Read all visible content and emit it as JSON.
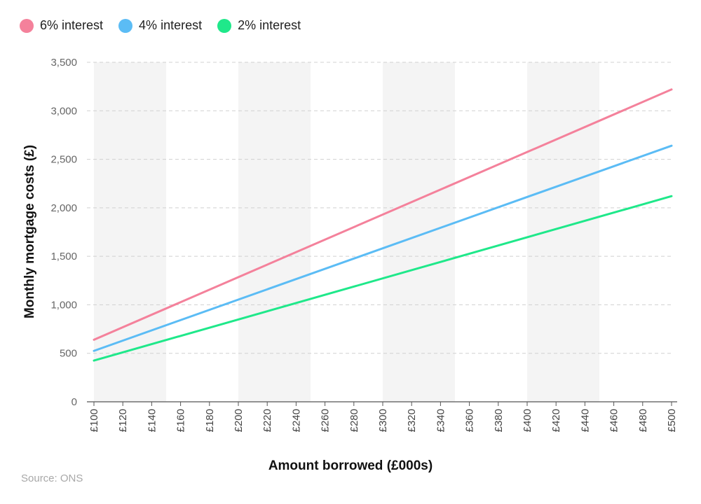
{
  "chart_data": {
    "type": "line",
    "xlabel": "Amount borrowed (£000s)",
    "ylabel": "Monthly mortgage costs (£)",
    "x": [
      100,
      500
    ],
    "x_tick_labels": [
      "£100",
      "£120",
      "£140",
      "£160",
      "£180",
      "£200",
      "£220",
      "£240",
      "£260",
      "£280",
      "£300",
      "£320",
      "£340",
      "£360",
      "£380",
      "£400",
      "£420",
      "£440",
      "£460",
      "£480",
      "£500"
    ],
    "y_tick_labels": [
      "0",
      "500",
      "1,000",
      "1,500",
      "2,000",
      "2,500",
      "3,000",
      "3,500"
    ],
    "ylim": [
      0,
      3500
    ],
    "xlim": [
      100,
      500
    ],
    "grid": true,
    "legend_position": "top-left",
    "series": [
      {
        "name": "6% interest",
        "color": "#f4819b",
        "values": [
          640,
          3220
        ]
      },
      {
        "name": "4% interest",
        "color": "#5bbcf5",
        "values": [
          525,
          2640
        ]
      },
      {
        "name": "2% interest",
        "color": "#1fe88a",
        "values": [
          425,
          2120
        ]
      }
    ],
    "source": "Source: ONS"
  }
}
